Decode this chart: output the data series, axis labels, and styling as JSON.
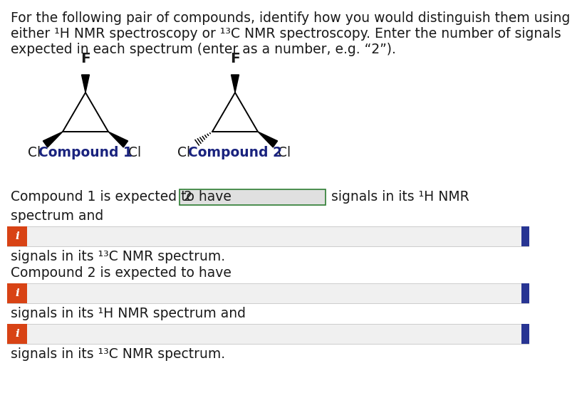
{
  "title_lines": [
    "For the following pair of compounds, identify how you would distinguish them using",
    "either ¹H NMR spectroscopy or ¹³C NMR spectroscopy. Enter the number of signals",
    "expected in each spectrum (enter as a number, e.g. “2”)."
  ],
  "compound1_label": "Compound 1",
  "compound2_label": "Compound 2",
  "line1": "Compound 1 is expected to have",
  "box1_text": "2",
  "line1_suffix": "signals in its ¹H NMR",
  "line2": "spectrum and",
  "line3": "signals in its ¹³C NMR spectrum.",
  "line4": "Compound 2 is expected to have",
  "line5": "signals in its ¹H NMR spectrum and",
  "line6": "signals in its ¹³C NMR spectrum.",
  "bg_color": "#ffffff",
  "text_color": "#1a1a1a",
  "compound_label_color": "#1a237e",
  "input_box_bg": "#e0e0e0",
  "input_box_border": "#2e7d32",
  "icon_bg": "#d84315",
  "icon_text": "i",
  "icon_text_color": "#ffffff",
  "right_border_color": "#283593",
  "font_size": 13.5,
  "compound_font_size": 13.5,
  "title_font_size": 13.5
}
